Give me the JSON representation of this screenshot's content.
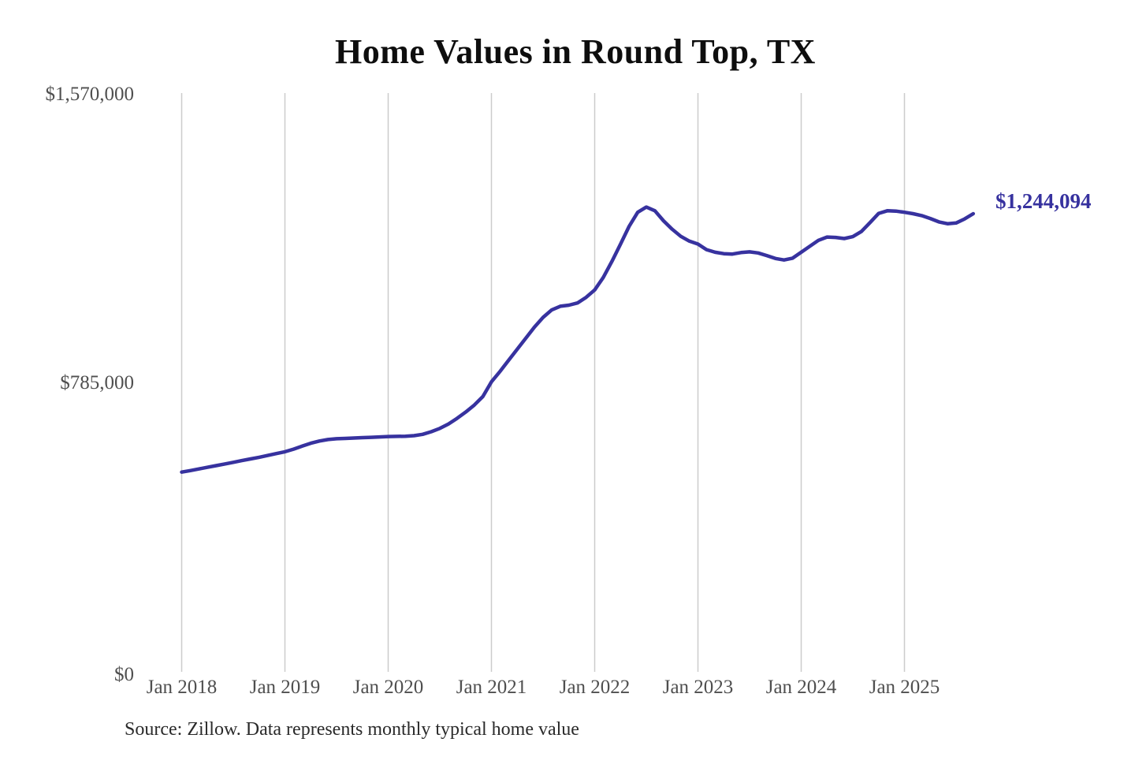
{
  "chart": {
    "title": "Home Values in Round Top, TX",
    "end_label": "$1,244,094",
    "source_note": "Source: Zillow. Data represents monthly typical home value",
    "accent_color": "#37329f",
    "gridline_color": "#cccccc",
    "axis_label_color": "#4f4f4f"
  },
  "chart_data": {
    "type": "line",
    "title": "Home Values in Round Top, TX",
    "xlabel": "",
    "ylabel": "",
    "ylim": [
      0,
      1570000
    ],
    "y_tick_labels": [
      "$0",
      "$785,000",
      "$1,570,000"
    ],
    "y_tick_values": [
      0,
      785000,
      1570000
    ],
    "x_tick_labels": [
      "Jan 2018",
      "Jan 2019",
      "Jan 2020",
      "Jan 2021",
      "Jan 2022",
      "Jan 2023",
      "Jan 2024",
      "Jan 2025"
    ],
    "grid": "vertical-only",
    "legend": "none",
    "annotation": "$1,244,094",
    "x_start": "Jan 2018",
    "x_interval": "month",
    "x_end": "Sep 2025",
    "series": [
      {
        "name": "Monthly typical home value",
        "values": [
          546000,
          550000,
          554500,
          559000,
          563500,
          568000,
          572500,
          577000,
          581500,
          586000,
          591000,
          596000,
          601000,
          608000,
          616000,
          624000,
          630000,
          634000,
          636000,
          637000,
          638000,
          639000,
          640000,
          641000,
          642000,
          642500,
          643000,
          644500,
          648000,
          655000,
          664000,
          676000,
          691000,
          708000,
          727000,
          750000,
          790000,
          818000,
          848000,
          878000,
          908000,
          938000,
          964000,
          984000,
          994000,
          997000,
          1003000,
          1018000,
          1038000,
          1072000,
          1115000,
          1162000,
          1210000,
          1248000,
          1262000,
          1252000,
          1225000,
          1202000,
          1183000,
          1170000,
          1162000,
          1147000,
          1140000,
          1136000,
          1135000,
          1139000,
          1141000,
          1138000,
          1131000,
          1123000,
          1119000,
          1124000,
          1140000,
          1156000,
          1172000,
          1181000,
          1180000,
          1177000,
          1182000,
          1196000,
          1220000,
          1245000,
          1252000,
          1251000,
          1248000,
          1244000,
          1239000,
          1231000,
          1222000,
          1217000,
          1219000,
          1230000,
          1244094
        ]
      }
    ]
  }
}
